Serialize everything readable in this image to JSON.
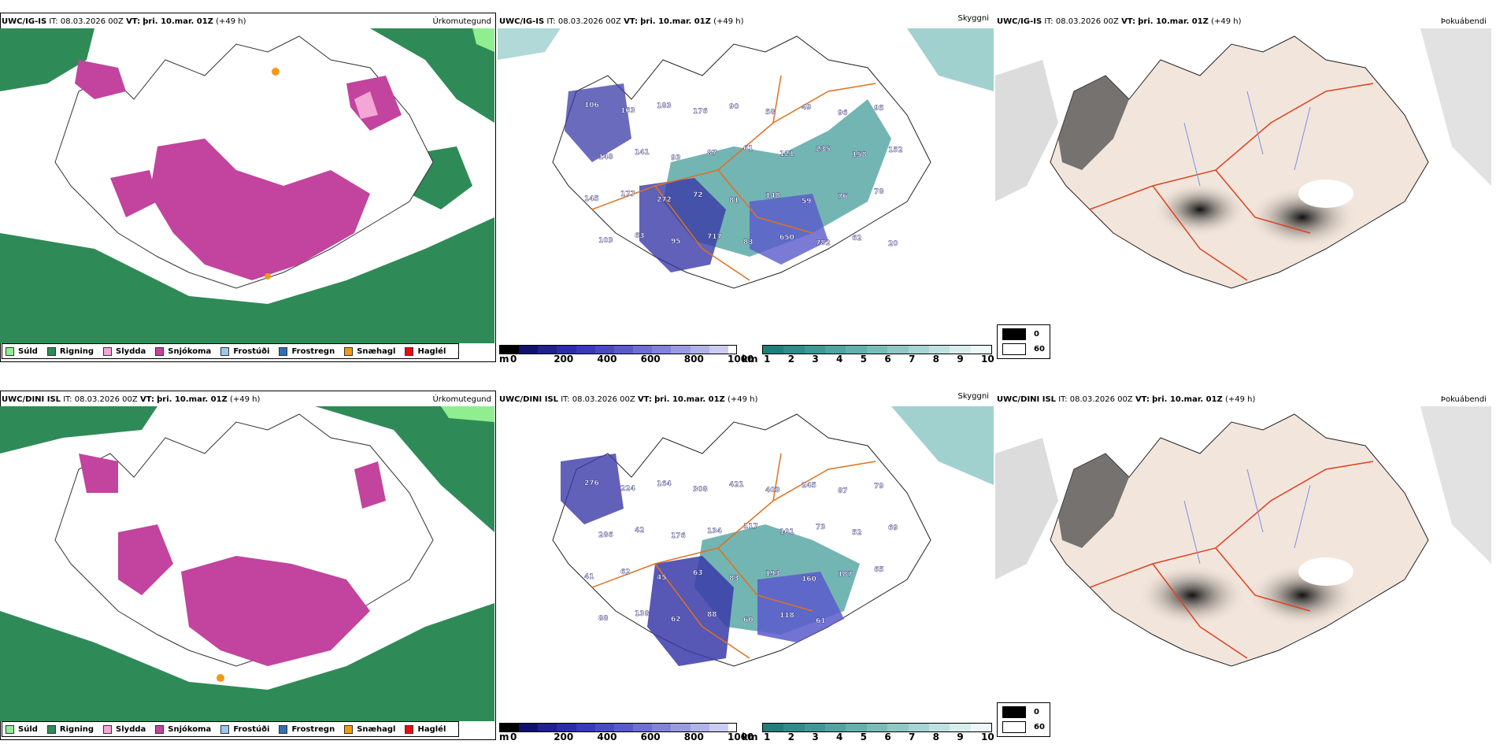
{
  "rows": [
    {
      "model": "UWC/IG-IS",
      "it_label": "IT:",
      "it_value": "08.03.2026 00Z",
      "vt_label": "VT:",
      "vt_value": "þri. 10.mar. 01Z",
      "lead": "(+49 h)",
      "panel_names": [
        "Úrkomutegund",
        "Skyggni",
        "Þokuábendi"
      ],
      "vis_labels": [
        "106",
        "163",
        "183",
        "176",
        "90",
        "58",
        "49",
        "96",
        "95",
        "148",
        "141",
        "93",
        "87",
        "61",
        "121",
        "235",
        "158",
        "152",
        "145",
        "177",
        "272",
        "72",
        "81",
        "148",
        "59",
        "76",
        "78",
        "103",
        "63",
        "95",
        "717",
        "83",
        "650",
        "782",
        "62",
        "20"
      ]
    },
    {
      "model": "UWC/DINI ISL",
      "it_label": "IT:",
      "it_value": "08.03.2026 00Z",
      "vt_label": "VT:",
      "vt_value": "þri. 10.mar. 01Z",
      "lead": "(+49 h)",
      "panel_names": [
        "Úrkomutegund",
        "Skyggni",
        "Þokuábendi"
      ],
      "vis_labels": [
        "276",
        "224",
        "164",
        "308",
        "421",
        "403",
        "245",
        "87",
        "79",
        "286",
        "42",
        "176",
        "134",
        "117",
        "101",
        "73",
        "52",
        "69",
        "41",
        "62",
        "45",
        "63",
        "83",
        "193",
        "160",
        "187",
        "65",
        "88",
        "138",
        "62",
        "88",
        "60",
        "118",
        "61"
      ]
    }
  ],
  "precip_legend": [
    {
      "label": "Súld",
      "color": "#90ee90"
    },
    {
      "label": "Rigning",
      "color": "#2e8b57"
    },
    {
      "label": "Slydda",
      "color": "#f4a6d7"
    },
    {
      "label": "Snjókoma",
      "color": "#c2449e"
    },
    {
      "label": "Frostúði",
      "color": "#9cc8f0"
    },
    {
      "label": "Frostregn",
      "color": "#2f6fb5"
    },
    {
      "label": "Snæhagl",
      "color": "#f09a1a"
    },
    {
      "label": "Haglél",
      "color": "#e01010"
    }
  ],
  "colorbar_m": {
    "unit": "m",
    "ticks": [
      "0",
      "200",
      "400",
      "600",
      "800",
      "1000"
    ],
    "colors": [
      "#000000",
      "#101070",
      "#202090",
      "#2c2ca8",
      "#3a3ab8",
      "#4a4ac0",
      "#5a5acc",
      "#6e6ed4",
      "#8282dc",
      "#9a9ae2",
      "#b2b2ea",
      "#ccccf2"
    ]
  },
  "colorbar_km": {
    "unit": "km",
    "ticks": [
      "1",
      "2",
      "3",
      "4",
      "5",
      "6",
      "7",
      "8",
      "9",
      "10"
    ],
    "colors": [
      "#1f7f7a",
      "#2d8d88",
      "#3d9995",
      "#4fa5a1",
      "#63b1ad",
      "#79bdba",
      "#8fc9c6",
      "#a7d5d3",
      "#bfe1df",
      "#d8eeec",
      "#eef8f7"
    ]
  },
  "fog_legend": [
    {
      "label": "0",
      "color": "#000000"
    },
    {
      "label": "60",
      "color": "#ffffff"
    }
  ],
  "colors": {
    "rain": "#2e8b57",
    "drizzle": "#90ee90",
    "snow": "#c2449e",
    "sleet": "#f4a6d7",
    "visibility_teal": "#5aa8a4",
    "visibility_blue": "#3a3aa8",
    "road": "#e07020",
    "land_fog": "#f2e6dc",
    "fog_red": "#e04020"
  }
}
